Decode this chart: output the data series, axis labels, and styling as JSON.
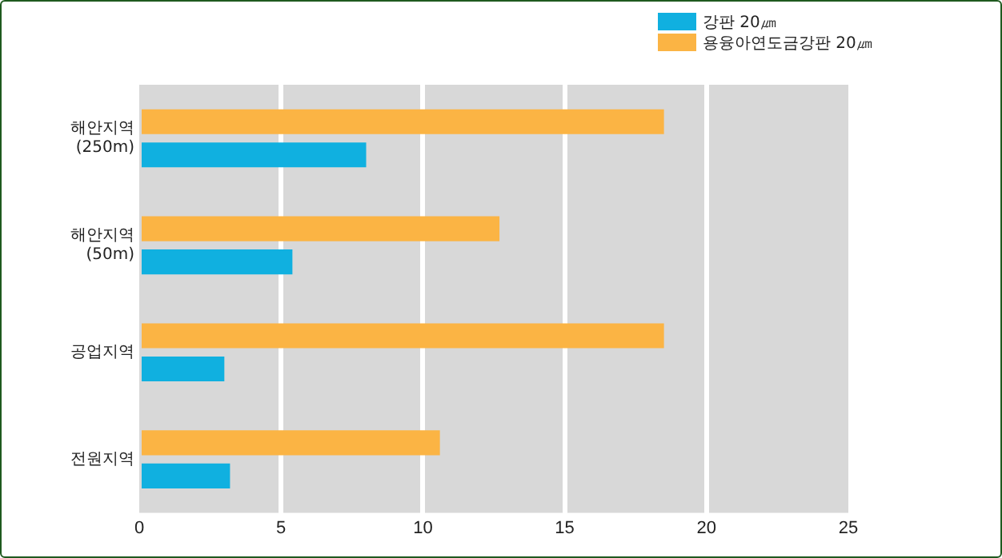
{
  "chart_data": {
    "type": "bar",
    "orientation": "horizontal",
    "categories": [
      "해안지역\n(250m)",
      "해안지역\n(50m)",
      "공업지역",
      "전원지역"
    ],
    "series": [
      {
        "name": "용융아연도금강판 20㎛",
        "color": "#fbb444",
        "values": [
          18.5,
          12.7,
          18.5,
          10.6
        ]
      },
      {
        "name": "강판 20㎛",
        "color": "#10b0e0",
        "values": [
          8.0,
          5.4,
          3.0,
          3.2
        ]
      }
    ],
    "xlim": [
      0,
      25
    ],
    "xticks": [
      0,
      5,
      10,
      15,
      20,
      25
    ],
    "grid": "x",
    "legend": "top right"
  }
}
